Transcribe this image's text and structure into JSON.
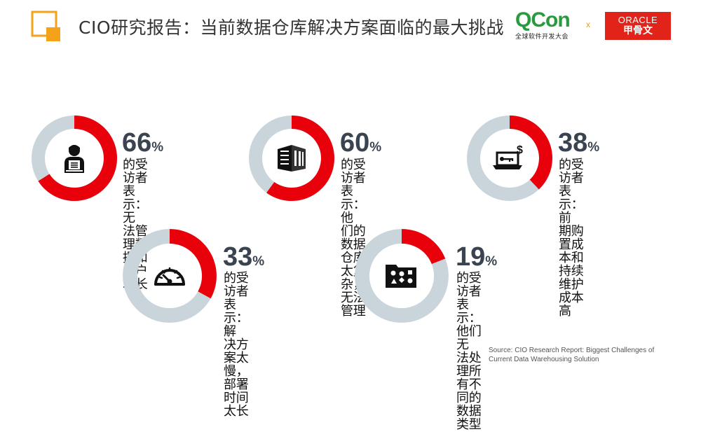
{
  "header": {
    "title": "CIO研究报告：当前数据仓库解决方案面临的最大挑战",
    "qcon_logo": "QCon",
    "qcon_sub": "全球软件开发大会",
    "times": "x",
    "oracle_logo": "ORACLE",
    "oracle_cn": "甲骨文"
  },
  "colors": {
    "accent": "#e8000b",
    "track": "#c9d5db",
    "orange": "#f5a21b",
    "text_dark": "#3a4450"
  },
  "chart_data": {
    "type": "pie",
    "title": "CIO研究报告：当前数据仓库解决方案面临的最大挑战",
    "items": [
      {
        "value": 66,
        "unit": "%",
        "label": "的受访者表示：无法管理数据和用户增长",
        "icon": "person-with-laptop-icon"
      },
      {
        "value": 60,
        "unit": "%",
        "label": "的受访者表示：他们的数据仓库太复杂，无法管理",
        "icon": "server-rack-icon"
      },
      {
        "value": 38,
        "unit": "%",
        "label": "的受访者表示：前期购置成本和持续维护成本高",
        "icon": "laptop-cost-icon"
      },
      {
        "value": 33,
        "unit": "%",
        "label": "的受访者表示：解决方案太慢，部署时间太长",
        "icon": "speedometer-icon"
      },
      {
        "value": 19,
        "unit": "%",
        "label": "的受访者表示：他们无法处理所有不同的数据类型",
        "icon": "data-types-folder-icon"
      }
    ]
  },
  "cards": [
    {
      "value": "66",
      "sign": "%",
      "lines": [
        "的受访者表示：无",
        "法管理数据和用户",
        "增长"
      ]
    },
    {
      "value": "60",
      "sign": "%",
      "lines": [
        "的受访者表示：他",
        "们的数据仓库太复",
        "杂，无法管理"
      ]
    },
    {
      "value": "38",
      "sign": "%",
      "lines": [
        "的受访者表示：前",
        "期购置成本和持续",
        "维护成本高"
      ]
    },
    {
      "value": "33",
      "sign": "%",
      "lines": [
        "的受访者表示：解",
        "决方案太慢，部署",
        "时间太长"
      ]
    },
    {
      "value": "19",
      "sign": "%",
      "lines": [
        "的受访者表示：他们无",
        "法处理所有不同的数据",
        "类型"
      ]
    }
  ],
  "source": {
    "line1": "Source: CIO Research Report: Biggest Challenges of",
    "line2": "Current Data Warehousing Solution"
  }
}
